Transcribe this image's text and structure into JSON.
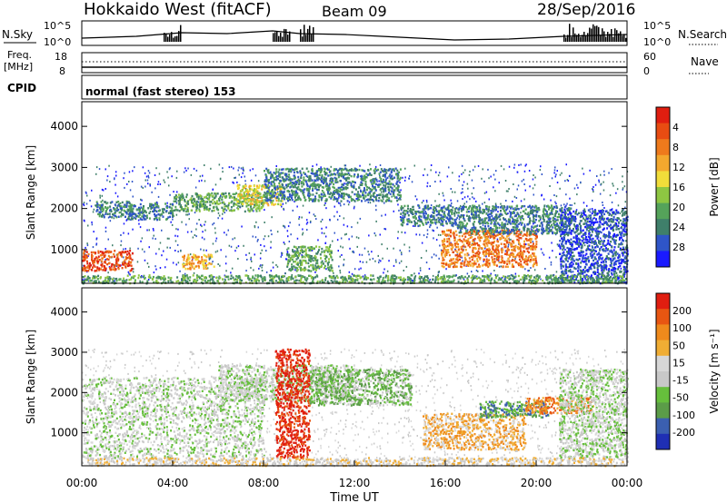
{
  "header": {
    "station": "Hokkaido West (fitACF)",
    "beam": "Beam 09",
    "date": "28/Sep/2016"
  },
  "panels": {
    "nsky": {
      "left_label": "N.Sky",
      "ticks_left": [
        "10^5",
        "10^0"
      ],
      "ticks_right": [
        "10^5",
        "10^0"
      ],
      "right_label": "N.Search"
    },
    "freq": {
      "left_label_1": "Freq.",
      "left_label_2": "[MHz]",
      "ticks_left": [
        "18",
        "8"
      ],
      "ticks_right": [
        "60",
        "0"
      ],
      "right_label": "Nave"
    },
    "cpid": {
      "label": "CPID",
      "text": "normal (fast stereo) 153"
    }
  },
  "chart_data": [
    {
      "type": "heatmap",
      "name": "power",
      "ylabel": "Slant Range [km]",
      "yticks": [
        1000,
        2000,
        3000,
        4000
      ],
      "ylim": [
        180,
        4600
      ],
      "xlim": [
        0,
        24
      ],
      "colorbar": {
        "title": "Power [dB]",
        "ticks": [
          "4",
          "8",
          "12",
          "16",
          "20",
          "24",
          "28"
        ],
        "colors": [
          "#1a1aff",
          "#2f55c8",
          "#3f7f6a",
          "#55a35a",
          "#8ec642",
          "#f1dd3a",
          "#f3a82e",
          "#ee7a1c",
          "#e84c12",
          "#e01e10"
        ]
      },
      "regions": [
        {
          "t0": 0.0,
          "t1": 2.2,
          "r0": 500,
          "r1": 1000,
          "v": 8
        },
        {
          "t0": 0.6,
          "t1": 2.2,
          "r0": 1800,
          "r1": 2200,
          "v": 2
        },
        {
          "t0": 2.0,
          "t1": 4.0,
          "r0": 1750,
          "r1": 2150,
          "v": 2
        },
        {
          "t0": 4.0,
          "t1": 8.0,
          "r0": 1950,
          "r1": 2400,
          "v": 3
        },
        {
          "t0": 6.8,
          "t1": 8.8,
          "r0": 2100,
          "r1": 2600,
          "v": 5
        },
        {
          "t0": 8.0,
          "t1": 14.0,
          "r0": 2200,
          "r1": 3000,
          "v": 2
        },
        {
          "t0": 4.4,
          "t1": 5.8,
          "r0": 550,
          "r1": 900,
          "v": 6
        },
        {
          "t0": 9.0,
          "t1": 11.0,
          "r0": 500,
          "r1": 1100,
          "v": 3
        },
        {
          "t0": 14.0,
          "t1": 16.5,
          "r0": 1600,
          "r1": 2100,
          "v": 2
        },
        {
          "t0": 15.8,
          "t1": 20.0,
          "r0": 600,
          "r1": 1500,
          "v": 7
        },
        {
          "t0": 16.5,
          "t1": 21.5,
          "r0": 1400,
          "r1": 2100,
          "v": 2
        },
        {
          "t0": 21.0,
          "t1": 24.0,
          "r0": 200,
          "r1": 2000,
          "v": 1
        },
        {
          "t0": 0.0,
          "t1": 24.0,
          "r0": 200,
          "r1": 400,
          "v": 3
        }
      ]
    },
    {
      "type": "heatmap",
      "name": "velocity",
      "ylabel": "Slant Range [km]",
      "yticks": [
        1000,
        2000,
        3000,
        4000
      ],
      "ylim": [
        180,
        4600
      ],
      "xlim": [
        0,
        24
      ],
      "colorbar": {
        "title": "Velocity [m s⁻¹]",
        "ticks": [
          "200",
          "100",
          "50",
          "15",
          "-15",
          "-50",
          "-100",
          "-200"
        ],
        "colors": [
          "#1f2fb4",
          "#3b5fb0",
          "#5b9c48",
          "#66bf3c",
          "#c8c8c8",
          "#d7d7d7",
          "#f0ad34",
          "#ef8a1c",
          "#e85612",
          "#e01e10"
        ]
      },
      "regions": [
        {
          "t0": 0.0,
          "t1": 8.0,
          "r0": 400,
          "r1": 2400,
          "v": 4
        },
        {
          "t0": 6.0,
          "t1": 12.0,
          "r0": 1800,
          "r1": 2700,
          "v": 4
        },
        {
          "t0": 8.5,
          "t1": 10.0,
          "r0": 400,
          "r1": 3100,
          "v": 9
        },
        {
          "t0": 10.0,
          "t1": 14.5,
          "r0": 1700,
          "r1": 2600,
          "v": 3
        },
        {
          "t0": 15.0,
          "t1": 19.5,
          "r0": 600,
          "r1": 1500,
          "v": 6
        },
        {
          "t0": 17.5,
          "t1": 20.5,
          "r0": 1400,
          "r1": 1800,
          "v": 2
        },
        {
          "t0": 19.5,
          "t1": 22.5,
          "r0": 1500,
          "r1": 1900,
          "v": 7
        },
        {
          "t0": 21.0,
          "t1": 24.0,
          "r0": 400,
          "r1": 2600,
          "v": 4
        },
        {
          "t0": 0.0,
          "t1": 24.0,
          "r0": 200,
          "r1": 400,
          "v": 5
        }
      ]
    }
  ],
  "xaxis": {
    "label": "Time UT",
    "ticks": [
      "00:00",
      "04:00",
      "08:00",
      "12:00",
      "16:00",
      "20:00",
      "00:00"
    ]
  }
}
